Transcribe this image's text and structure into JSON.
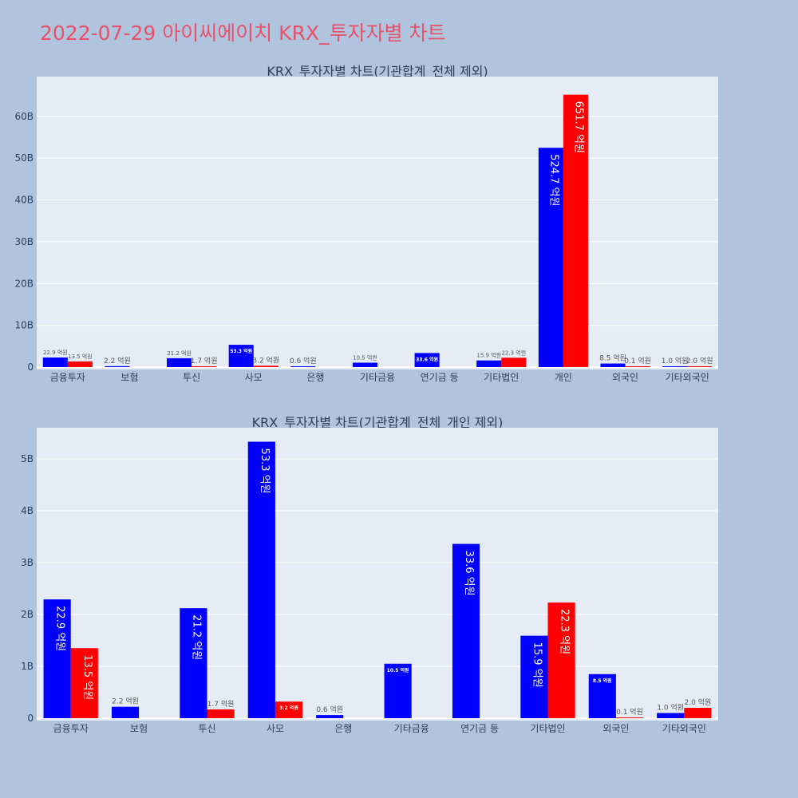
{
  "title": "2022-07-29 아이씨에이치 KRX_투자자별 차트",
  "colors": {
    "buy": "#0000ff",
    "sell": "#ff0000",
    "plot_bg": "#e5ecf6",
    "page_bg": "#b0c4de",
    "title": "#e8516a"
  },
  "chart_data": [
    {
      "type": "bar",
      "title": "KRX_투자자별 차트(기관합계_전체 제외)",
      "categories": [
        "금융투자",
        "보험",
        "투신",
        "사모",
        "은행",
        "기타금융",
        "연기금 등",
        "기타법인",
        "개인",
        "외국인",
        "기타외국인"
      ],
      "series": [
        {
          "color": "#0000ff",
          "values": [
            2290000000,
            220000000,
            2120000000,
            5330000000,
            60000000,
            1050000000,
            3360000000,
            1590000000,
            52470000000,
            850000000,
            100000000
          ],
          "labels": [
            "22.9 억원",
            "2.2 억원",
            "21.2 억원",
            "53.3 억원",
            "0.6 억원",
            "10.5 억원",
            "33.6 억원",
            "15.9 억원",
            "524.7 억원",
            "8.5 억원",
            "1.0 억원"
          ]
        },
        {
          "color": "#ff0000",
          "values": [
            1350000000,
            0,
            170000000,
            320000000,
            0,
            0,
            0,
            2230000000,
            65170000000,
            10000000,
            200000000
          ],
          "labels": [
            "13.5 억원",
            "",
            "1.7 억원",
            "3.2 억원",
            "",
            "",
            "",
            "22.3 억원",
            "651.7 억원",
            "0.1 억원",
            "2.0 억원"
          ]
        }
      ],
      "ylim": [
        0,
        69500000000
      ],
      "yticks": [
        0,
        10000000000,
        20000000000,
        30000000000,
        40000000000,
        50000000000,
        60000000000
      ],
      "ytick_labels": [
        "0",
        "10B",
        "20B",
        "30B",
        "40B",
        "50B",
        "60B"
      ],
      "grid": true
    },
    {
      "type": "bar",
      "title": "KRX_투자자별 차트(기관합계_전체_개인 제외)",
      "categories": [
        "금융투자",
        "보험",
        "투신",
        "사모",
        "은행",
        "기타금융",
        "연기금 등",
        "기타법인",
        "외국인",
        "기타외국인"
      ],
      "series": [
        {
          "color": "#0000ff",
          "values": [
            2290000000,
            220000000,
            2120000000,
            5330000000,
            60000000,
            1050000000,
            3360000000,
            1590000000,
            850000000,
            100000000
          ],
          "labels": [
            "22.9 억원",
            "2.2 억원",
            "21.2 억원",
            "53.3 억원",
            "0.6 억원",
            "10.5 억원",
            "33.6 억원",
            "15.9 억원",
            "8.5 억원",
            "1.0 억원"
          ]
        },
        {
          "color": "#ff0000",
          "values": [
            1350000000,
            0,
            170000000,
            320000000,
            0,
            0,
            0,
            2230000000,
            10000000,
            200000000
          ],
          "labels": [
            "13.5 억원",
            "",
            "1.7 억원",
            "3.2 억원",
            "",
            "",
            "",
            "22.3 억원",
            "0.1 억원",
            "2.0 억원"
          ]
        }
      ],
      "ylim": [
        0,
        5600000000
      ],
      "yticks": [
        0,
        1000000000,
        2000000000,
        3000000000,
        4000000000,
        5000000000
      ],
      "ytick_labels": [
        "0",
        "1B",
        "2B",
        "3B",
        "4B",
        "5B"
      ],
      "grid": true
    }
  ]
}
